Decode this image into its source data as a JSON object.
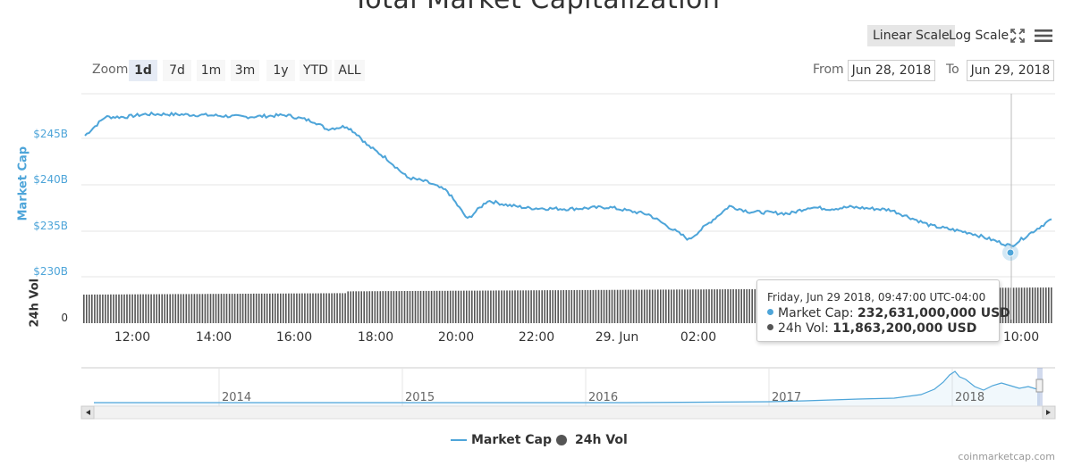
{
  "toolbar": {
    "title": "Total Market Capitalization",
    "linear_label": "Linear Scale",
    "log_label": "Log Scale",
    "zoom_label": "Zoom",
    "zoom_options": [
      "1d",
      "7d",
      "1m",
      "3m",
      "1y",
      "YTD",
      "ALL"
    ],
    "active_zoom": "1d",
    "from_label": "From",
    "from_value": "Jun 28, 2018",
    "to_label": "To",
    "to_value": "Jun 29, 2018",
    "icons": [
      "fullscreen-icon",
      "menu-icon"
    ]
  },
  "tooltip": {
    "title": "Friday, Jun 29 2018, 09:47:00 UTC-04:00",
    "market_cap_label": "Market Cap:",
    "market_cap_value": "232,631,000,000 USD",
    "volume_label": "24h Vol:",
    "volume_value": "11,863,200,000 USD"
  },
  "legend": {
    "market_cap": "Market Cap",
    "volume": "24h Vol"
  },
  "credit": "coinmarketcap.com",
  "colors": {
    "market_cap": "#4ea5d9",
    "volume": "#555555",
    "grid": "#e6e6e6",
    "navigator": "#4ea5d9"
  },
  "chart_data": {
    "type": "line",
    "title": "Total Market Capitalization",
    "x_ticks": [
      "12:00",
      "14:00",
      "16:00",
      "18:00",
      "20:00",
      "22:00",
      "29. Jun",
      "02:00",
      "10:00"
    ],
    "y_axis": {
      "label": "Market Cap",
      "ticks": [
        "$230B",
        "$235B",
        "$240B",
        "$245B"
      ],
      "unit": "USD billions",
      "range": [
        230,
        249
      ]
    },
    "volume_axis": {
      "label": "24h Vol",
      "ticks": [
        "0"
      ]
    },
    "series": [
      {
        "name": "Market Cap",
        "x_hours": [
          0,
          0.5,
          1,
          1.5,
          2,
          3,
          4,
          5,
          5.7,
          6,
          6.5,
          6.8,
          7,
          7.5,
          8,
          8.5,
          9,
          9.5,
          10,
          10.5,
          11,
          12,
          13,
          14,
          15,
          16,
          16.5,
          17,
          17.5,
          18,
          18.5,
          19,
          20,
          21,
          22,
          23,
          24
        ],
        "values": [
          244.5,
          246.5,
          246.5,
          246.8,
          246.8,
          246.7,
          246.5,
          246.7,
          246,
          245.2,
          245.5,
          244.5,
          243.5,
          242,
          240,
          239.5,
          238.5,
          235.5,
          237.5,
          237,
          236.7,
          236.6,
          236.8,
          236,
          233.3,
          236.9,
          236.3,
          236.2,
          236.1,
          236.8,
          236.6,
          236.8,
          236.5,
          234.8,
          234.0,
          232.6,
          235.5
        ]
      },
      {
        "name": "24h Vol",
        "note": "flat bars",
        "values": []
      }
    ],
    "highlight": {
      "time": "Friday, Jun 29 2018, 09:47:00 UTC-04:00",
      "market_cap": 232.631,
      "volume": 11.8632
    },
    "navigator": {
      "years": [
        "2014",
        "2015",
        "2016",
        "2017",
        "2018"
      ]
    },
    "legend_position": "bottom-center",
    "grid": true
  }
}
